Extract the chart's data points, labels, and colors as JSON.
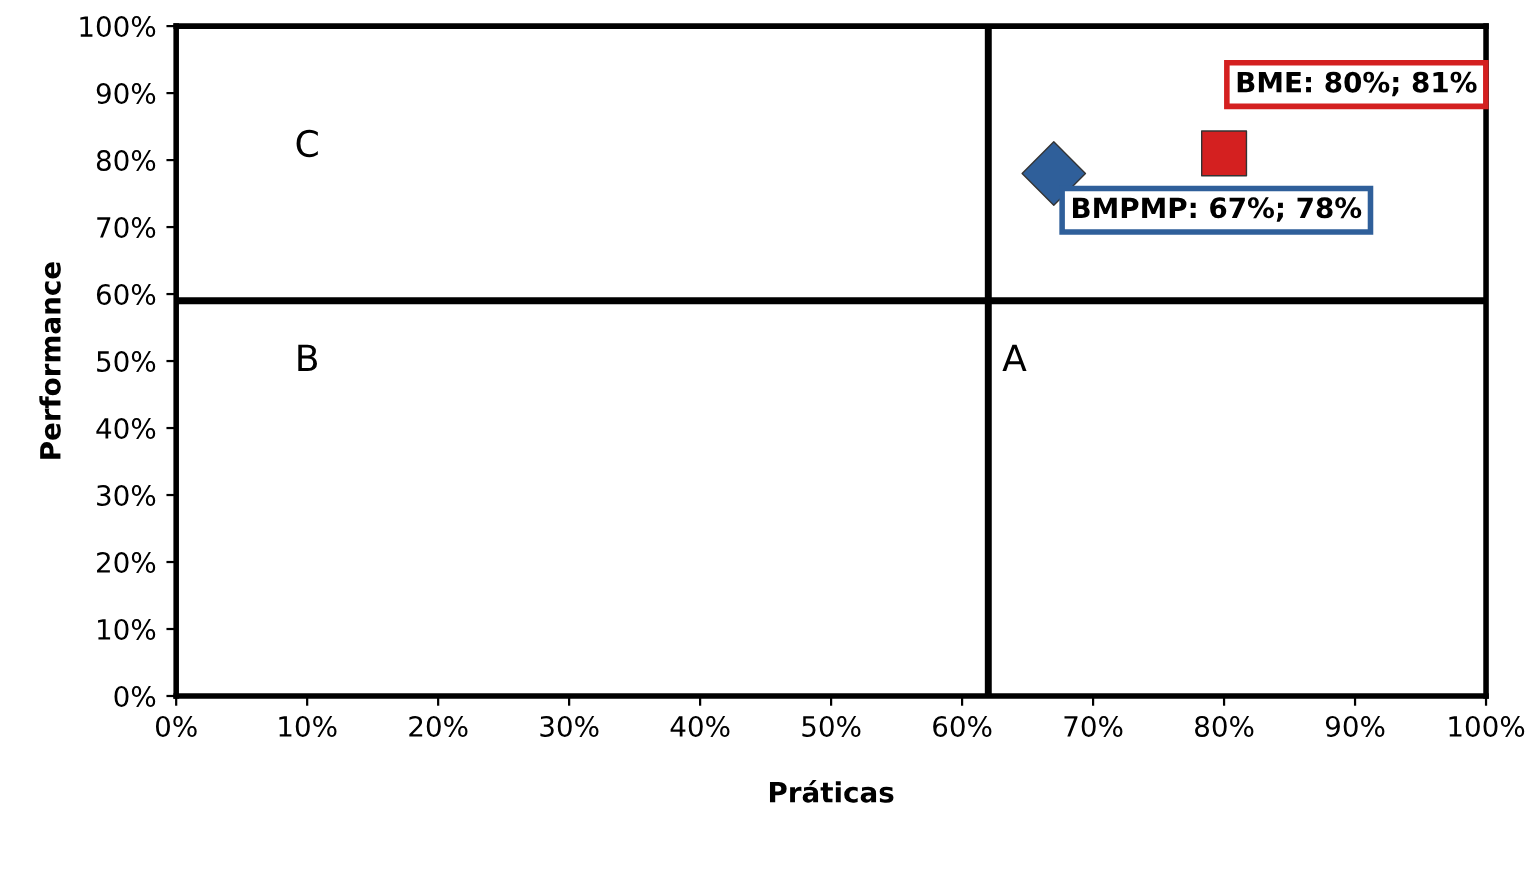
{
  "chart_data": {
    "type": "scatter",
    "xlabel": "Práticas",
    "ylabel": "Performance",
    "series": [
      {
        "color": "#2f5f9a",
        "marker": "diamond",
        "x": [
          67
        ],
        "values": [
          78
        ]
      },
      {
        "color": "#d42020",
        "marker": "square",
        "x": [
          80
        ],
        "values": [
          81
        ]
      }
    ],
    "xlim": [
      0,
      100
    ],
    "ylim": [
      0,
      100
    ],
    "xticks": [
      {
        "value": 0,
        "label": "0%"
      },
      {
        "value": 10,
        "label": "10%"
      },
      {
        "value": 20,
        "label": "20%"
      },
      {
        "value": 30,
        "label": "30%"
      },
      {
        "value": 40,
        "label": "40%"
      },
      {
        "value": 50,
        "label": "50%"
      },
      {
        "value": 60,
        "label": "60%"
      },
      {
        "value": 70,
        "label": "70%"
      },
      {
        "value": 80,
        "label": "80%"
      },
      {
        "value": 90,
        "label": "90%"
      },
      {
        "value": 100,
        "label": "100%"
      }
    ],
    "yticks": [
      {
        "value": 0,
        "label": "0%"
      },
      {
        "value": 10,
        "label": "10%"
      },
      {
        "value": 20,
        "label": "20%"
      },
      {
        "value": 30,
        "label": "30%"
      },
      {
        "value": 40,
        "label": "40%"
      },
      {
        "value": 50,
        "label": "50%"
      },
      {
        "value": 60,
        "label": "60%"
      },
      {
        "value": 70,
        "label": "70%"
      },
      {
        "value": 80,
        "label": "80%"
      },
      {
        "value": 90,
        "label": "90%"
      },
      {
        "value": 100,
        "label": "100%"
      }
    ],
    "ref_lines": [
      {
        "axis": "x",
        "value": 62,
        "color": "#000000"
      },
      {
        "axis": "y",
        "value": 59,
        "color": "#000000"
      }
    ],
    "annotations": [
      {
        "text": "BMPMP: 67%; 78%",
        "x": 67,
        "y": 78
      },
      {
        "text": "BME: 80%; 81%",
        "x": 80,
        "y": 81
      },
      "C",
      "B",
      "A"
    ],
    "grid": false
  }
}
